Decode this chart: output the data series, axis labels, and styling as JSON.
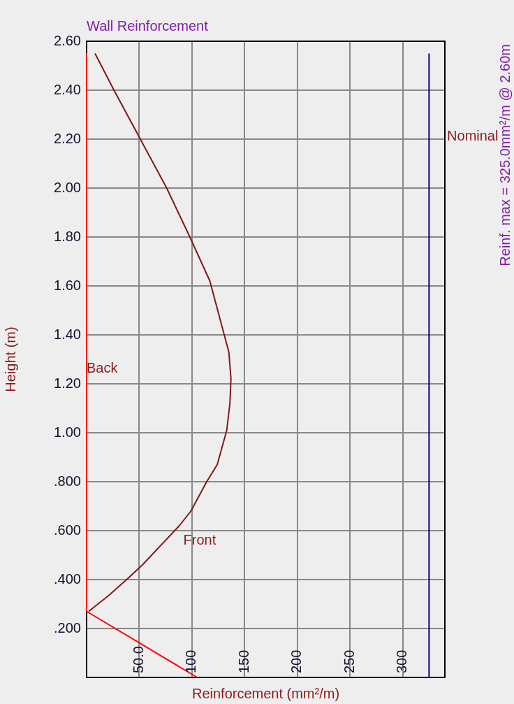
{
  "chart_data": {
    "type": "line",
    "title": "Wall Reinforcement",
    "xlabel": "Reinforcement (mm²/m)",
    "ylabel": "Height (m)",
    "annotations": [
      "Reinf. max = 325.0mm²/m @ 2.60m"
    ],
    "xlim": [
      0,
      340
    ],
    "xticks": [
      {
        "value": 50,
        "label": "50.0"
      },
      100,
      150,
      200,
      250,
      300
    ],
    "ylim": [
      0,
      2.6
    ],
    "yticks": [
      {
        "value": 0.2,
        "label": ".200"
      },
      {
        "value": 0.4,
        "label": ".400"
      },
      {
        "value": 0.6,
        "label": ".600"
      },
      {
        "value": 0.8,
        "label": ".800"
      },
      {
        "value": 1.0,
        "label": "1.00"
      },
      {
        "value": 1.2,
        "label": "1.20"
      },
      {
        "value": 1.4,
        "label": "1.40"
      },
      {
        "value": 1.6,
        "label": "1.60"
      },
      {
        "value": 1.8,
        "label": "1.80"
      },
      {
        "value": 2.0,
        "label": "2.00"
      },
      {
        "value": 2.2,
        "label": "2.20"
      },
      {
        "value": 2.4,
        "label": "2.40"
      },
      {
        "value": 2.6,
        "label": "2.60"
      }
    ],
    "grid": true,
    "legend": false,
    "marker": "none",
    "series": [
      {
        "name": "Back",
        "color": "#ff0000",
        "x": [
          0,
          0,
          105
        ],
        "values": [
          2.55,
          0.27,
          0
        ]
      },
      {
        "name": "Front",
        "color": "#801818",
        "x": [
          8,
          26,
          51,
          76,
          98,
          117,
          130,
          135,
          137,
          136,
          133,
          124,
          114,
          99,
          88,
          53,
          38,
          21,
          2
        ],
        "values": [
          2.55,
          2.4,
          2.2,
          2.0,
          1.8,
          1.62,
          1.41,
          1.33,
          1.22,
          1.12,
          1.01,
          0.87,
          0.8,
          0.68,
          0.62,
          0.46,
          0.4,
          0.335,
          0.27
        ]
      },
      {
        "name": "Nominal",
        "color": "#000080",
        "x": [
          325,
          325
        ],
        "values": [
          0,
          2.55
        ]
      }
    ]
  }
}
